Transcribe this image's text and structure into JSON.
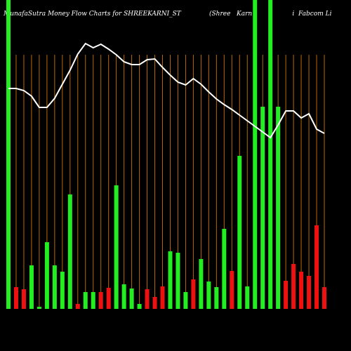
{
  "chart_data": {
    "type": "money-flow",
    "title": "MunafaSutra  Money Flow  Charts for SHREEKARNI_ST",
    "subtitle": "(Shree   Karn                    i  Fabcom Li",
    "ylim": [
      0,
      440
    ],
    "series": [
      {
        "name": "Money Flow",
        "type": "bar",
        "values": [
          440,
          31,
          28,
          62,
          3,
          95,
          62,
          53,
          163,
          7,
          24,
          24,
          24,
          30,
          176,
          35,
          29,
          7,
          28,
          17,
          32,
          82,
          80,
          24,
          42,
          71,
          39,
          31,
          114,
          54,
          218,
          32,
          440,
          288,
          440,
          288,
          40,
          64,
          53,
          47,
          119,
          31
        ],
        "colors": [
          "#22ee22",
          "#ee1111",
          "#ee1111",
          "#22ee22",
          "#22ee22",
          "#22ee22",
          "#22ee22",
          "#22ee22",
          "#22ee22",
          "#ee1111",
          "#22ee22",
          "#22ee22",
          "#ee1111",
          "#ee1111",
          "#22ee22",
          "#22ee22",
          "#22ee22",
          "#22ee22",
          "#ee1111",
          "#ee1111",
          "#ee1111",
          "#22ee22",
          "#22ee22",
          "#22ee22",
          "#ee1111",
          "#22ee22",
          "#22ee22",
          "#22ee22",
          "#22ee22",
          "#ee1111",
          "#22ee22",
          "#22ee22",
          "#22ee22",
          "#22ee22",
          "#22ee22",
          "#22ee22",
          "#ee1111",
          "#ee1111",
          "#ee1111",
          "#ee1111",
          "#ee1111",
          "#ee1111"
        ]
      },
      {
        "name": "Price",
        "type": "line",
        "color": "#ffffff",
        "values": [
          314,
          314,
          311,
          303,
          287,
          287,
          300,
          320,
          340,
          363,
          378,
          372,
          377,
          370,
          362,
          352,
          348,
          348,
          355,
          356,
          344,
          333,
          323,
          319,
          328,
          320,
          309,
          299,
          291,
          284,
          276,
          268,
          260,
          252,
          244,
          262,
          282,
          282,
          272,
          278,
          256,
          250
        ]
      }
    ]
  }
}
